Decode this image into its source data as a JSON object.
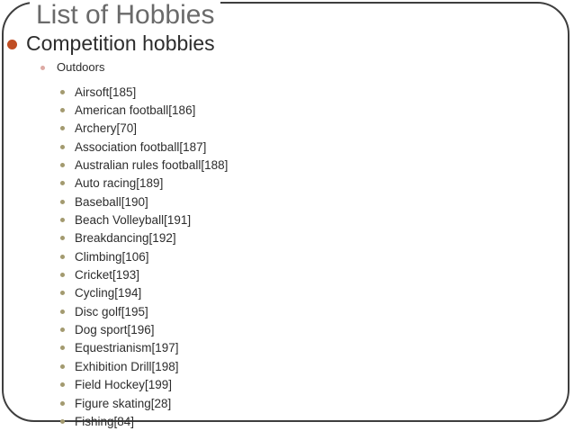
{
  "slide": {
    "title": "List of Hobbies",
    "level1_heading": "Competition hobbies",
    "level2_heading": "Outdoors",
    "items": [
      "Airsoft[185]",
      "American football[186]",
      "Archery[70]",
      "Association football[187]",
      "Australian rules football[188]",
      "Auto racing[189]",
      "Baseball[190]",
      "Beach Volleyball[191]",
      "Breakdancing[192]",
      "Climbing[106]",
      "Cricket[193]",
      "Cycling[194]",
      "Disc golf[195]",
      "Dog sport[196]",
      "Equestrianism[197]",
      "Exhibition Drill[198]",
      "Field Hockey[199]",
      "Figure skating[28]",
      "Fishing[84]"
    ],
    "colors": {
      "title": "#6a6a6a",
      "text": "#2d2d2d",
      "border": "#3e3e3e",
      "bullet_l1": "#c04e24",
      "bullet_l2": "#ddaaa4",
      "bullet_l3": "#a39a6f"
    }
  }
}
